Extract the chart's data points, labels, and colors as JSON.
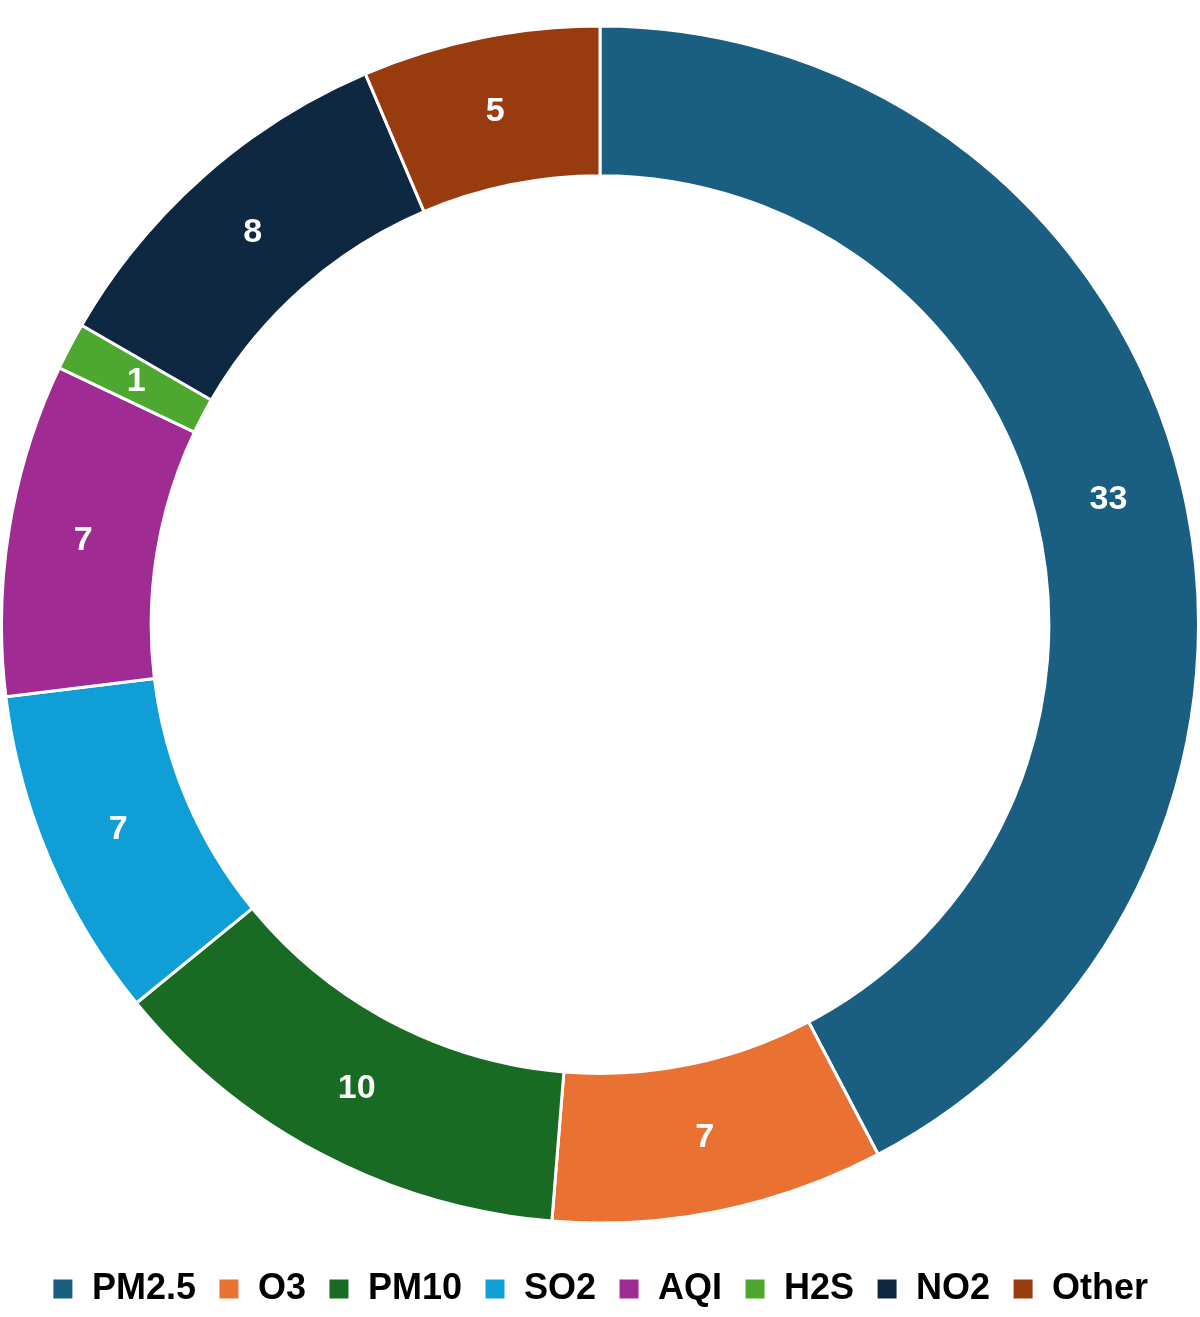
{
  "chart_data": {
    "type": "donut",
    "categories": [
      "PM2.5",
      "O3",
      "PM10",
      "SO2",
      "AQI",
      "H2S",
      "NO2",
      "Other"
    ],
    "values": [
      33,
      7,
      10,
      7,
      7,
      1,
      8,
      5
    ],
    "colors": [
      "#1a5f82",
      "#e97132",
      "#196b24",
      "#0f9ed5",
      "#a02b93",
      "#4ea72e",
      "#0e2841",
      "#983c10"
    ],
    "data_labels": true,
    "legend": "bottom"
  }
}
